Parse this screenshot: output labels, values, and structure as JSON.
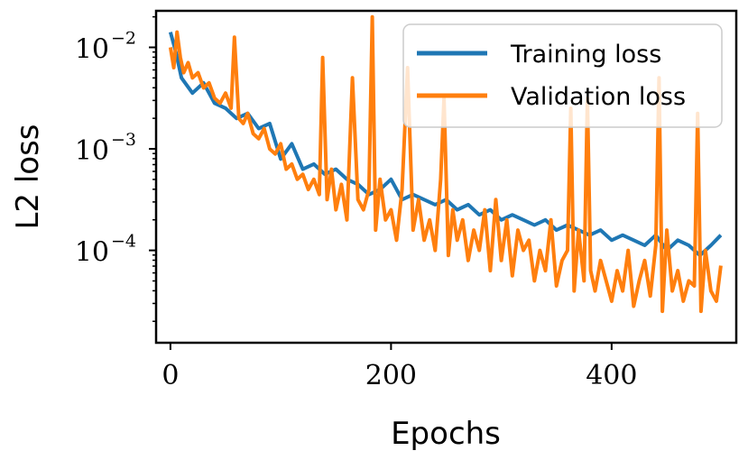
{
  "chart_data": {
    "type": "line",
    "xlabel": "Epochs",
    "ylabel": "L2 loss",
    "xlim": [
      -13,
      513
    ],
    "ylim_log10": [
      -4.91,
      -1.64
    ],
    "xscale": "linear",
    "yscale": "log",
    "grid": false,
    "legend_position": "top-right",
    "x_ticks": [
      {
        "value": 0,
        "label": "0"
      },
      {
        "value": 200,
        "label": "200"
      },
      {
        "value": 400,
        "label": "400"
      }
    ],
    "y_ticks": [
      {
        "exponent": -2,
        "base": "10",
        "exp_label": "−2"
      },
      {
        "exponent": -3,
        "base": "10",
        "exp_label": "−3"
      },
      {
        "exponent": -4,
        "base": "10",
        "exp_label": "−4"
      }
    ],
    "series": [
      {
        "name": "Training loss",
        "color": "#1f77b4",
        "x": [
          0,
          5,
          10,
          20,
          30,
          40,
          50,
          60,
          70,
          80,
          90,
          100,
          110,
          120,
          130,
          140,
          150,
          160,
          170,
          180,
          190,
          200,
          210,
          220,
          230,
          240,
          250,
          260,
          270,
          280,
          290,
          300,
          310,
          320,
          330,
          340,
          350,
          360,
          370,
          380,
          390,
          400,
          410,
          420,
          430,
          440,
          450,
          460,
          470,
          480,
          490,
          499
        ],
        "log10_values": [
          -1.85,
          -2.05,
          -2.3,
          -2.45,
          -2.35,
          -2.55,
          -2.6,
          -2.7,
          -2.65,
          -2.8,
          -2.75,
          -3.1,
          -2.95,
          -3.2,
          -3.15,
          -3.25,
          -3.2,
          -3.3,
          -3.35,
          -3.45,
          -3.4,
          -3.3,
          -3.5,
          -3.45,
          -3.5,
          -3.55,
          -3.5,
          -3.6,
          -3.55,
          -3.65,
          -3.6,
          -3.7,
          -3.65,
          -3.7,
          -3.75,
          -3.7,
          -3.8,
          -3.75,
          -3.8,
          -3.85,
          -3.8,
          -3.9,
          -3.85,
          -3.9,
          -3.95,
          -3.85,
          -4.0,
          -3.9,
          -3.95,
          -4.05,
          -3.95,
          -3.85
        ]
      },
      {
        "name": "Validation loss",
        "color": "#ff7f0e",
        "x": [
          0,
          3,
          6,
          9,
          12,
          16,
          20,
          25,
          30,
          35,
          40,
          45,
          50,
          55,
          58,
          62,
          66,
          70,
          75,
          80,
          85,
          90,
          95,
          100,
          105,
          110,
          115,
          120,
          125,
          130,
          135,
          138,
          142,
          146,
          150,
          155,
          160,
          165,
          170,
          175,
          180,
          183,
          186,
          190,
          195,
          200,
          205,
          210,
          215,
          220,
          225,
          230,
          235,
          240,
          245,
          248,
          252,
          256,
          260,
          265,
          270,
          275,
          280,
          285,
          290,
          295,
          300,
          305,
          310,
          315,
          320,
          325,
          330,
          335,
          340,
          345,
          350,
          355,
          360,
          363,
          366,
          370,
          375,
          378,
          381,
          385,
          390,
          395,
          400,
          405,
          410,
          415,
          420,
          425,
          430,
          435,
          440,
          443,
          446,
          450,
          455,
          460,
          465,
          470,
          475,
          478,
          481,
          485,
          490,
          495,
          499
        ],
        "log10_values": [
          -2.0,
          -2.2,
          -1.85,
          -2.1,
          -2.25,
          -2.15,
          -2.3,
          -2.25,
          -2.4,
          -2.35,
          -2.5,
          -2.55,
          -2.45,
          -2.6,
          -1.9,
          -2.7,
          -2.75,
          -2.65,
          -2.85,
          -2.9,
          -2.8,
          -3.0,
          -3.05,
          -2.95,
          -3.2,
          -3.15,
          -3.3,
          -3.25,
          -3.4,
          -3.3,
          -3.45,
          -2.1,
          -3.5,
          -3.2,
          -3.6,
          -3.35,
          -3.7,
          -2.3,
          -3.5,
          -3.6,
          -3.4,
          -1.7,
          -3.8,
          -3.3,
          -3.7,
          -3.6,
          -3.9,
          -3.4,
          -2.2,
          -3.8,
          -3.5,
          -3.9,
          -3.7,
          -4.0,
          -3.3,
          -2.5,
          -4.05,
          -3.6,
          -3.9,
          -3.7,
          -4.1,
          -3.8,
          -4.0,
          -3.6,
          -4.2,
          -3.5,
          -4.1,
          -3.7,
          -4.25,
          -3.8,
          -4.0,
          -3.9,
          -4.3,
          -4.0,
          -4.2,
          -3.7,
          -4.35,
          -4.1,
          -4.0,
          -2.6,
          -4.4,
          -3.8,
          -4.3,
          -2.5,
          -4.2,
          -4.4,
          -4.1,
          -4.3,
          -4.5,
          -4.2,
          -4.4,
          -4.0,
          -4.55,
          -4.3,
          -4.1,
          -4.45,
          -3.95,
          -2.3,
          -4.6,
          -3.8,
          -4.4,
          -4.2,
          -4.5,
          -4.3,
          -4.35,
          -2.65,
          -4.6,
          -4.0,
          -4.4,
          -4.5,
          -4.15
        ]
      }
    ]
  }
}
